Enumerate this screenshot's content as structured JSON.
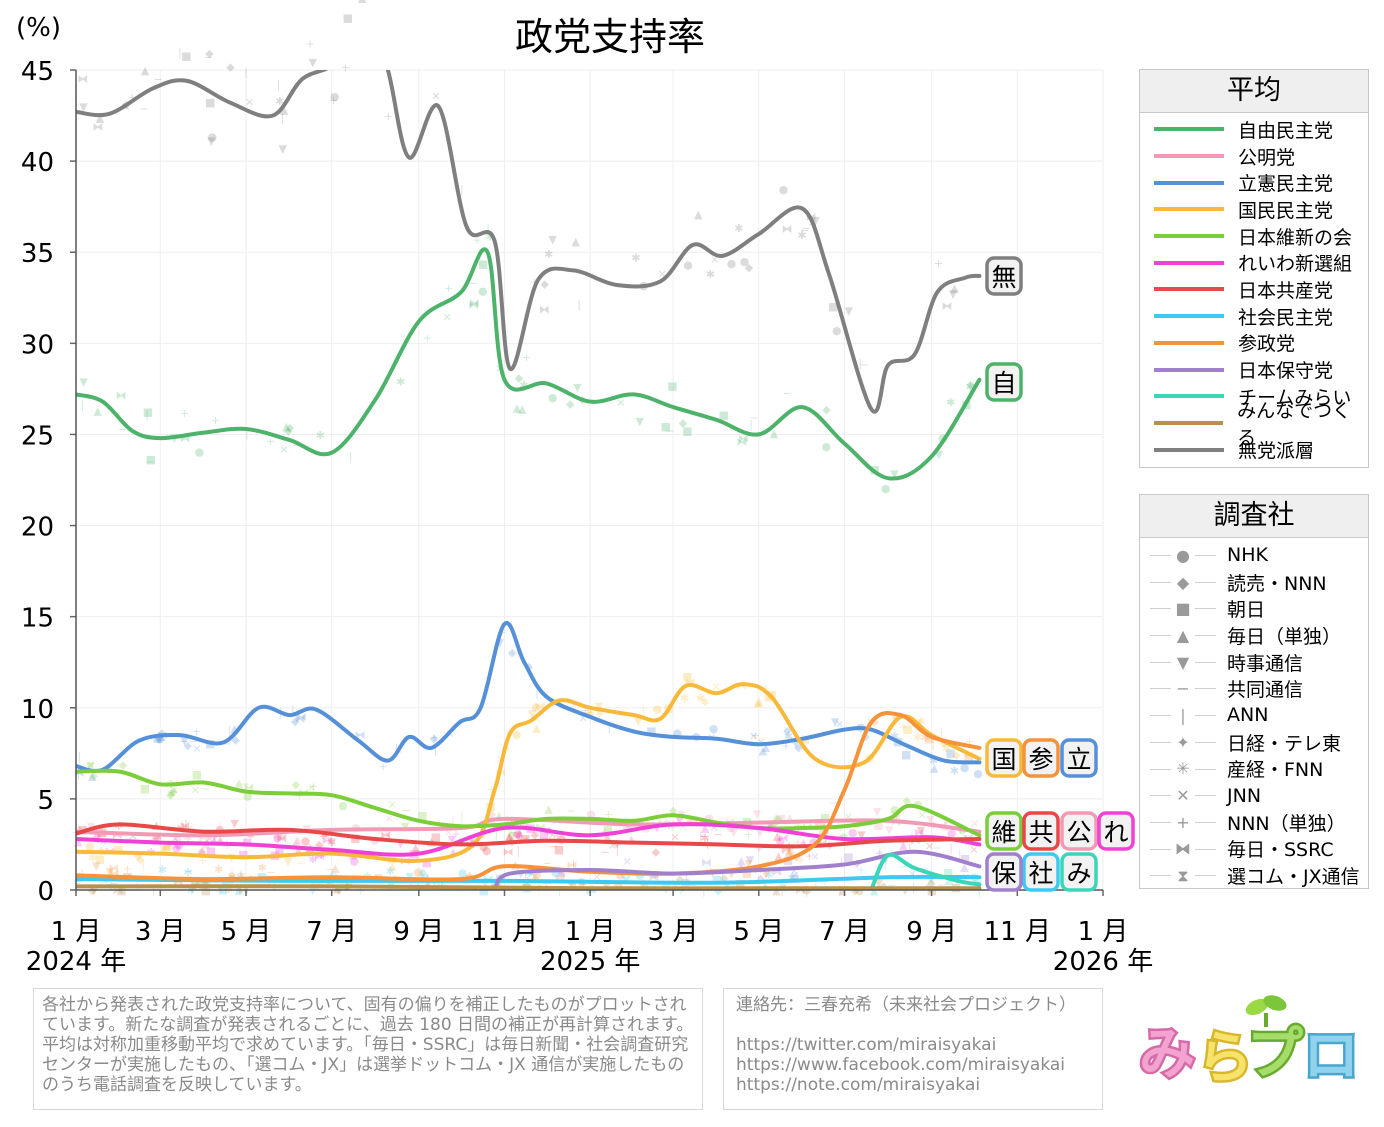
{
  "chart_data": {
    "type": "line",
    "title": "政党支持率",
    "ylabel": "(%)",
    "ylim": [
      0,
      45
    ],
    "yticks": [
      "0",
      "5",
      "10",
      "15",
      "20",
      "25",
      "30",
      "35",
      "40",
      "45"
    ],
    "xlim": [
      "2024-01-01",
      "2026-01-01"
    ],
    "xticks": [
      {
        "date": "2024-01-01",
        "label": "1 月"
      },
      {
        "date": "2024-03-01",
        "label": "3 月"
      },
      {
        "date": "2024-05-01",
        "label": "5 月"
      },
      {
        "date": "2024-07-01",
        "label": "7 月"
      },
      {
        "date": "2024-09-01",
        "label": "9 月"
      },
      {
        "date": "2024-11-01",
        "label": "11 月"
      },
      {
        "date": "2025-01-01",
        "label": "1 月"
      },
      {
        "date": "2025-03-01",
        "label": "3 月"
      },
      {
        "date": "2025-05-01",
        "label": "5 月"
      },
      {
        "date": "2025-07-01",
        "label": "7 月"
      },
      {
        "date": "2025-09-01",
        "label": "9 月"
      },
      {
        "date": "2025-11-01",
        "label": "11 月"
      },
      {
        "date": "2026-01-01",
        "label": "1 月"
      }
    ],
    "year_labels": [
      {
        "date": "2024-01-01",
        "label": "2024 年"
      },
      {
        "date": "2025-01-01",
        "label": "2025 年"
      },
      {
        "date": "2026-01-01",
        "label": "2026 年"
      }
    ],
    "grid": true,
    "legend_position": "right",
    "series": [
      {
        "name": "自由民主党",
        "color": "#4db36b",
        "tag": "自",
        "dates": [
          "2024-01-01",
          "2024-01-20",
          "2024-02-10",
          "2024-03-01",
          "2024-04-01",
          "2024-05-01",
          "2024-06-01",
          "2024-07-01",
          "2024-08-01",
          "2024-09-01",
          "2024-10-01",
          "2024-10-20",
          "2024-11-01",
          "2024-12-01",
          "2025-01-01",
          "2025-02-01",
          "2025-03-01",
          "2025-04-01",
          "2025-05-01",
          "2025-06-01",
          "2025-07-01",
          "2025-08-01",
          "2025-09-01",
          "2025-10-05"
        ],
        "values": [
          27.2,
          26.8,
          25.2,
          24.8,
          25.1,
          25.3,
          24.7,
          24.0,
          26.9,
          31.2,
          32.8,
          35.0,
          28.0,
          27.8,
          26.8,
          27.2,
          26.5,
          25.8,
          25.0,
          26.5,
          24.5,
          22.6,
          23.8,
          28.0
        ]
      },
      {
        "name": "公明党",
        "color": "#f29ab5",
        "tag": "公",
        "dates": [
          "2024-01-01",
          "2024-04-01",
          "2024-07-01",
          "2024-10-01",
          "2024-11-01",
          "2025-02-01",
          "2025-05-01",
          "2025-08-01",
          "2025-10-05"
        ],
        "values": [
          3.2,
          3.0,
          3.3,
          3.4,
          3.9,
          3.6,
          3.7,
          3.8,
          3.2
        ]
      },
      {
        "name": "立憲民主党",
        "color": "#5590d9",
        "tag": "立",
        "dates": [
          "2024-01-01",
          "2024-01-20",
          "2024-02-15",
          "2024-03-15",
          "2024-04-15",
          "2024-05-10",
          "2024-06-01",
          "2024-06-20",
          "2024-07-20",
          "2024-08-10",
          "2024-08-25",
          "2024-09-10",
          "2024-09-30",
          "2024-10-15",
          "2024-11-01",
          "2024-11-15",
          "2024-12-01",
          "2025-01-01",
          "2025-02-01",
          "2025-03-01",
          "2025-04-01",
          "2025-05-01",
          "2025-06-01",
          "2025-07-01",
          "2025-07-20",
          "2025-08-15",
          "2025-09-10",
          "2025-10-05"
        ],
        "values": [
          6.8,
          6.6,
          8.2,
          8.5,
          8.1,
          10.0,
          9.6,
          9.9,
          8.2,
          7.1,
          8.4,
          7.8,
          9.2,
          10.0,
          14.6,
          12.5,
          10.6,
          9.5,
          8.7,
          8.4,
          8.3,
          8.0,
          8.3,
          8.8,
          8.8,
          7.9,
          7.1,
          7.0
        ]
      },
      {
        "name": "国民民主党",
        "color": "#f8b93a",
        "tag": "国",
        "dates": [
          "2024-01-01",
          "2024-03-01",
          "2024-05-01",
          "2024-07-01",
          "2024-09-01",
          "2024-10-10",
          "2024-10-25",
          "2024-11-05",
          "2024-11-20",
          "2024-12-10",
          "2025-01-01",
          "2025-02-01",
          "2025-02-20",
          "2025-03-10",
          "2025-04-01",
          "2025-04-20",
          "2025-05-10",
          "2025-06-10",
          "2025-07-15",
          "2025-08-10",
          "2025-09-01",
          "2025-10-05"
        ],
        "values": [
          2.1,
          2.0,
          1.8,
          2.0,
          1.6,
          2.5,
          5.5,
          8.6,
          9.3,
          10.4,
          10.0,
          9.6,
          9.4,
          11.2,
          10.8,
          11.3,
          10.6,
          7.2,
          7.0,
          9.5,
          8.5,
          7.2
        ]
      },
      {
        "name": "日本維新の会",
        "color": "#7ccd3a",
        "tag": "維",
        "dates": [
          "2024-01-01",
          "2024-02-01",
          "2024-03-01",
          "2024-04-01",
          "2024-05-01",
          "2024-06-01",
          "2024-07-01",
          "2024-08-01",
          "2024-09-01",
          "2024-10-01",
          "2024-11-01",
          "2024-12-01",
          "2025-01-01",
          "2025-02-01",
          "2025-03-01",
          "2025-04-01",
          "2025-05-01",
          "2025-06-01",
          "2025-07-01",
          "2025-08-01",
          "2025-08-20",
          "2025-10-05"
        ],
        "values": [
          6.5,
          6.5,
          5.8,
          5.9,
          5.4,
          5.3,
          5.2,
          4.5,
          3.8,
          3.5,
          3.6,
          3.9,
          3.9,
          3.8,
          4.1,
          3.7,
          3.4,
          3.4,
          3.5,
          3.9,
          4.6,
          3.0
        ]
      },
      {
        "name": "れいわ新選組",
        "color": "#f041d6",
        "tag": "れ",
        "dates": [
          "2024-01-01",
          "2024-03-01",
          "2024-05-01",
          "2024-07-01",
          "2024-09-01",
          "2024-11-01",
          "2025-01-01",
          "2025-03-01",
          "2025-05-01",
          "2025-07-01",
          "2025-09-01",
          "2025-10-05"
        ],
        "values": [
          2.8,
          2.6,
          2.5,
          2.2,
          2.0,
          3.4,
          3.0,
          3.6,
          3.4,
          2.8,
          2.9,
          2.5
        ]
      },
      {
        "name": "日本共産党",
        "color": "#e84848",
        "tag": "共",
        "dates": [
          "2024-01-01",
          "2024-02-01",
          "2024-04-01",
          "2024-06-01",
          "2024-08-01",
          "2024-10-01",
          "2024-12-01",
          "2025-02-01",
          "2025-04-01",
          "2025-06-01",
          "2025-08-01",
          "2025-10-05"
        ],
        "values": [
          3.1,
          3.6,
          3.2,
          3.3,
          2.8,
          2.5,
          2.7,
          2.6,
          2.5,
          2.4,
          2.7,
          2.8
        ]
      },
      {
        "name": "社会民主党",
        "color": "#3ccaf0",
        "tag": "社",
        "dates": [
          "2024-01-01",
          "2024-06-01",
          "2024-11-01",
          "2025-04-01",
          "2025-08-01",
          "2025-10-05"
        ],
        "values": [
          0.6,
          0.5,
          0.5,
          0.4,
          0.7,
          0.7
        ]
      },
      {
        "name": "参政党",
        "color": "#f5923a",
        "tag": "参",
        "dates": [
          "2024-01-01",
          "2024-04-01",
          "2024-07-01",
          "2024-10-01",
          "2024-11-01",
          "2025-01-01",
          "2025-03-01",
          "2025-05-01",
          "2025-06-10",
          "2025-07-01",
          "2025-07-20",
          "2025-08-10",
          "2025-09-01",
          "2025-10-05"
        ],
        "values": [
          0.8,
          0.6,
          0.7,
          0.6,
          1.3,
          1.0,
          0.9,
          1.3,
          2.5,
          5.5,
          9.2,
          9.6,
          8.4,
          7.8
        ]
      },
      {
        "name": "日本保守党",
        "color": "#a080cc",
        "tag": "保",
        "dates": [
          "2024-10-25",
          "2024-11-05",
          "2025-01-01",
          "2025-03-01",
          "2025-05-01",
          "2025-07-01",
          "2025-08-20",
          "2025-10-05"
        ],
        "values": [
          0.0,
          0.9,
          1.1,
          0.9,
          1.1,
          1.4,
          2.1,
          1.3
        ]
      },
      {
        "name": "チームみらい",
        "color": "#3ad6b8",
        "tag": "み",
        "dates": [
          "2025-07-20",
          "2025-08-01",
          "2025-08-20",
          "2025-09-20",
          "2025-10-05"
        ],
        "values": [
          0.0,
          1.9,
          1.2,
          0.5,
          0.3
        ]
      },
      {
        "name": "みんなでつくる",
        "color": "#b8904a",
        "tag": "",
        "dates": [
          "2024-01-01",
          "2024-07-01",
          "2025-01-01",
          "2025-07-01",
          "2025-10-05"
        ],
        "values": [
          0.2,
          0.2,
          0.1,
          0.1,
          0.1
        ]
      },
      {
        "name": "無党派層",
        "color": "#7f7f7f",
        "tag": "無",
        "dates": [
          "2024-01-01",
          "2024-01-25",
          "2024-02-25",
          "2024-03-20",
          "2024-04-20",
          "2024-05-20",
          "2024-06-10",
          "2024-07-05",
          "2024-07-25",
          "2024-08-10",
          "2024-08-25",
          "2024-09-15",
          "2024-10-05",
          "2024-10-25",
          "2024-11-05",
          "2024-11-25",
          "2024-12-20",
          "2025-01-20",
          "2025-02-20",
          "2025-03-15",
          "2025-04-05",
          "2025-05-01",
          "2025-06-01",
          "2025-06-20",
          "2025-07-20",
          "2025-08-01",
          "2025-08-20",
          "2025-09-05",
          "2025-09-25",
          "2025-10-05"
        ],
        "values": [
          42.7,
          42.6,
          44.0,
          44.4,
          43.2,
          42.5,
          44.5,
          45.5,
          48.5,
          45.0,
          40.2,
          43.0,
          36.4,
          35.6,
          28.6,
          33.5,
          34.0,
          33.2,
          33.4,
          35.4,
          34.8,
          36.0,
          37.4,
          33.8,
          26.4,
          28.8,
          29.4,
          32.8,
          33.6,
          33.7
        ]
      }
    ]
  },
  "legend_average": {
    "title": "平均"
  },
  "legend_pollsters": {
    "title": "調査社",
    "items": [
      {
        "name": "NHK",
        "marker": "circle"
      },
      {
        "name": "読売・NNN",
        "marker": "diamond"
      },
      {
        "name": "朝日",
        "marker": "square"
      },
      {
        "name": "毎日（単独）",
        "marker": "triangle-up"
      },
      {
        "name": "時事通信",
        "marker": "triangle-down"
      },
      {
        "name": "共同通信",
        "marker": "dash"
      },
      {
        "name": "ANN",
        "marker": "vbar"
      },
      {
        "name": "日経・テレ東",
        "marker": "star4"
      },
      {
        "name": "産経・FNN",
        "marker": "asterisk"
      },
      {
        "name": "JNN",
        "marker": "x"
      },
      {
        "name": "NNN（単独）",
        "marker": "plus"
      },
      {
        "name": "毎日・SSRC",
        "marker": "bowtie"
      },
      {
        "name": "選コム・JX通信",
        "marker": "hourglass"
      }
    ]
  },
  "notes": {
    "left": "各社から発表された政党支持率について、固有の偏りを補正したものがプロットされています。新たな調査が発表されるごとに、過去 180 日間の補正が再計算されます。平均は対称加重移動平均で求めています。「毎日・SSRC」は毎日新聞・社会調査研究センターが実施したもの、「選コム・JX」は選挙ドットコム・JX 通信が実施したもののうち電話調査を反映しています。",
    "contact": "連絡先：三春充希（未来社会プロジェクト）",
    "links": [
      "https://twitter.com/miraisyakai",
      "https://www.facebook.com/miraisyakai",
      "https://note.com/miraisyakai"
    ]
  },
  "logo": {
    "text": "みらプロ"
  }
}
